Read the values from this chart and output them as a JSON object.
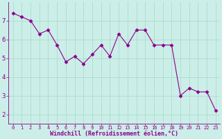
{
  "x": [
    0,
    1,
    2,
    3,
    4,
    5,
    6,
    7,
    8,
    9,
    10,
    11,
    12,
    13,
    14,
    15,
    16,
    17,
    18,
    19,
    20,
    21,
    22,
    23
  ],
  "y": [
    7.4,
    7.2,
    7.0,
    6.3,
    6.5,
    5.7,
    4.8,
    5.1,
    4.7,
    5.2,
    5.7,
    5.1,
    6.3,
    5.7,
    6.5,
    6.5,
    5.7,
    5.7,
    5.7,
    3.0,
    3.4,
    3.2,
    3.2,
    2.2
  ],
  "line_color": "#8B008B",
  "marker": "D",
  "marker_size": 2.5,
  "bg_color": "#cceee8",
  "grid_color": "#aaddcc",
  "xlabel": "Windchill (Refroidissement éolien,°C)",
  "ylim": [
    1.5,
    8.0
  ],
  "xlim": [
    -0.5,
    23.5
  ],
  "yticks": [
    2,
    3,
    4,
    5,
    6,
    7
  ],
  "xticks": [
    0,
    1,
    2,
    3,
    4,
    5,
    6,
    7,
    8,
    9,
    10,
    11,
    12,
    13,
    14,
    15,
    16,
    17,
    18,
    19,
    20,
    21,
    22,
    23
  ],
  "xlabel_color": "#8B008B",
  "tick_color": "#8B008B",
  "axis_line_color": "#8B008B",
  "font_family": "monospace",
  "xlabel_fontsize": 6.0,
  "ytick_fontsize": 6.5,
  "xtick_fontsize": 5.0
}
